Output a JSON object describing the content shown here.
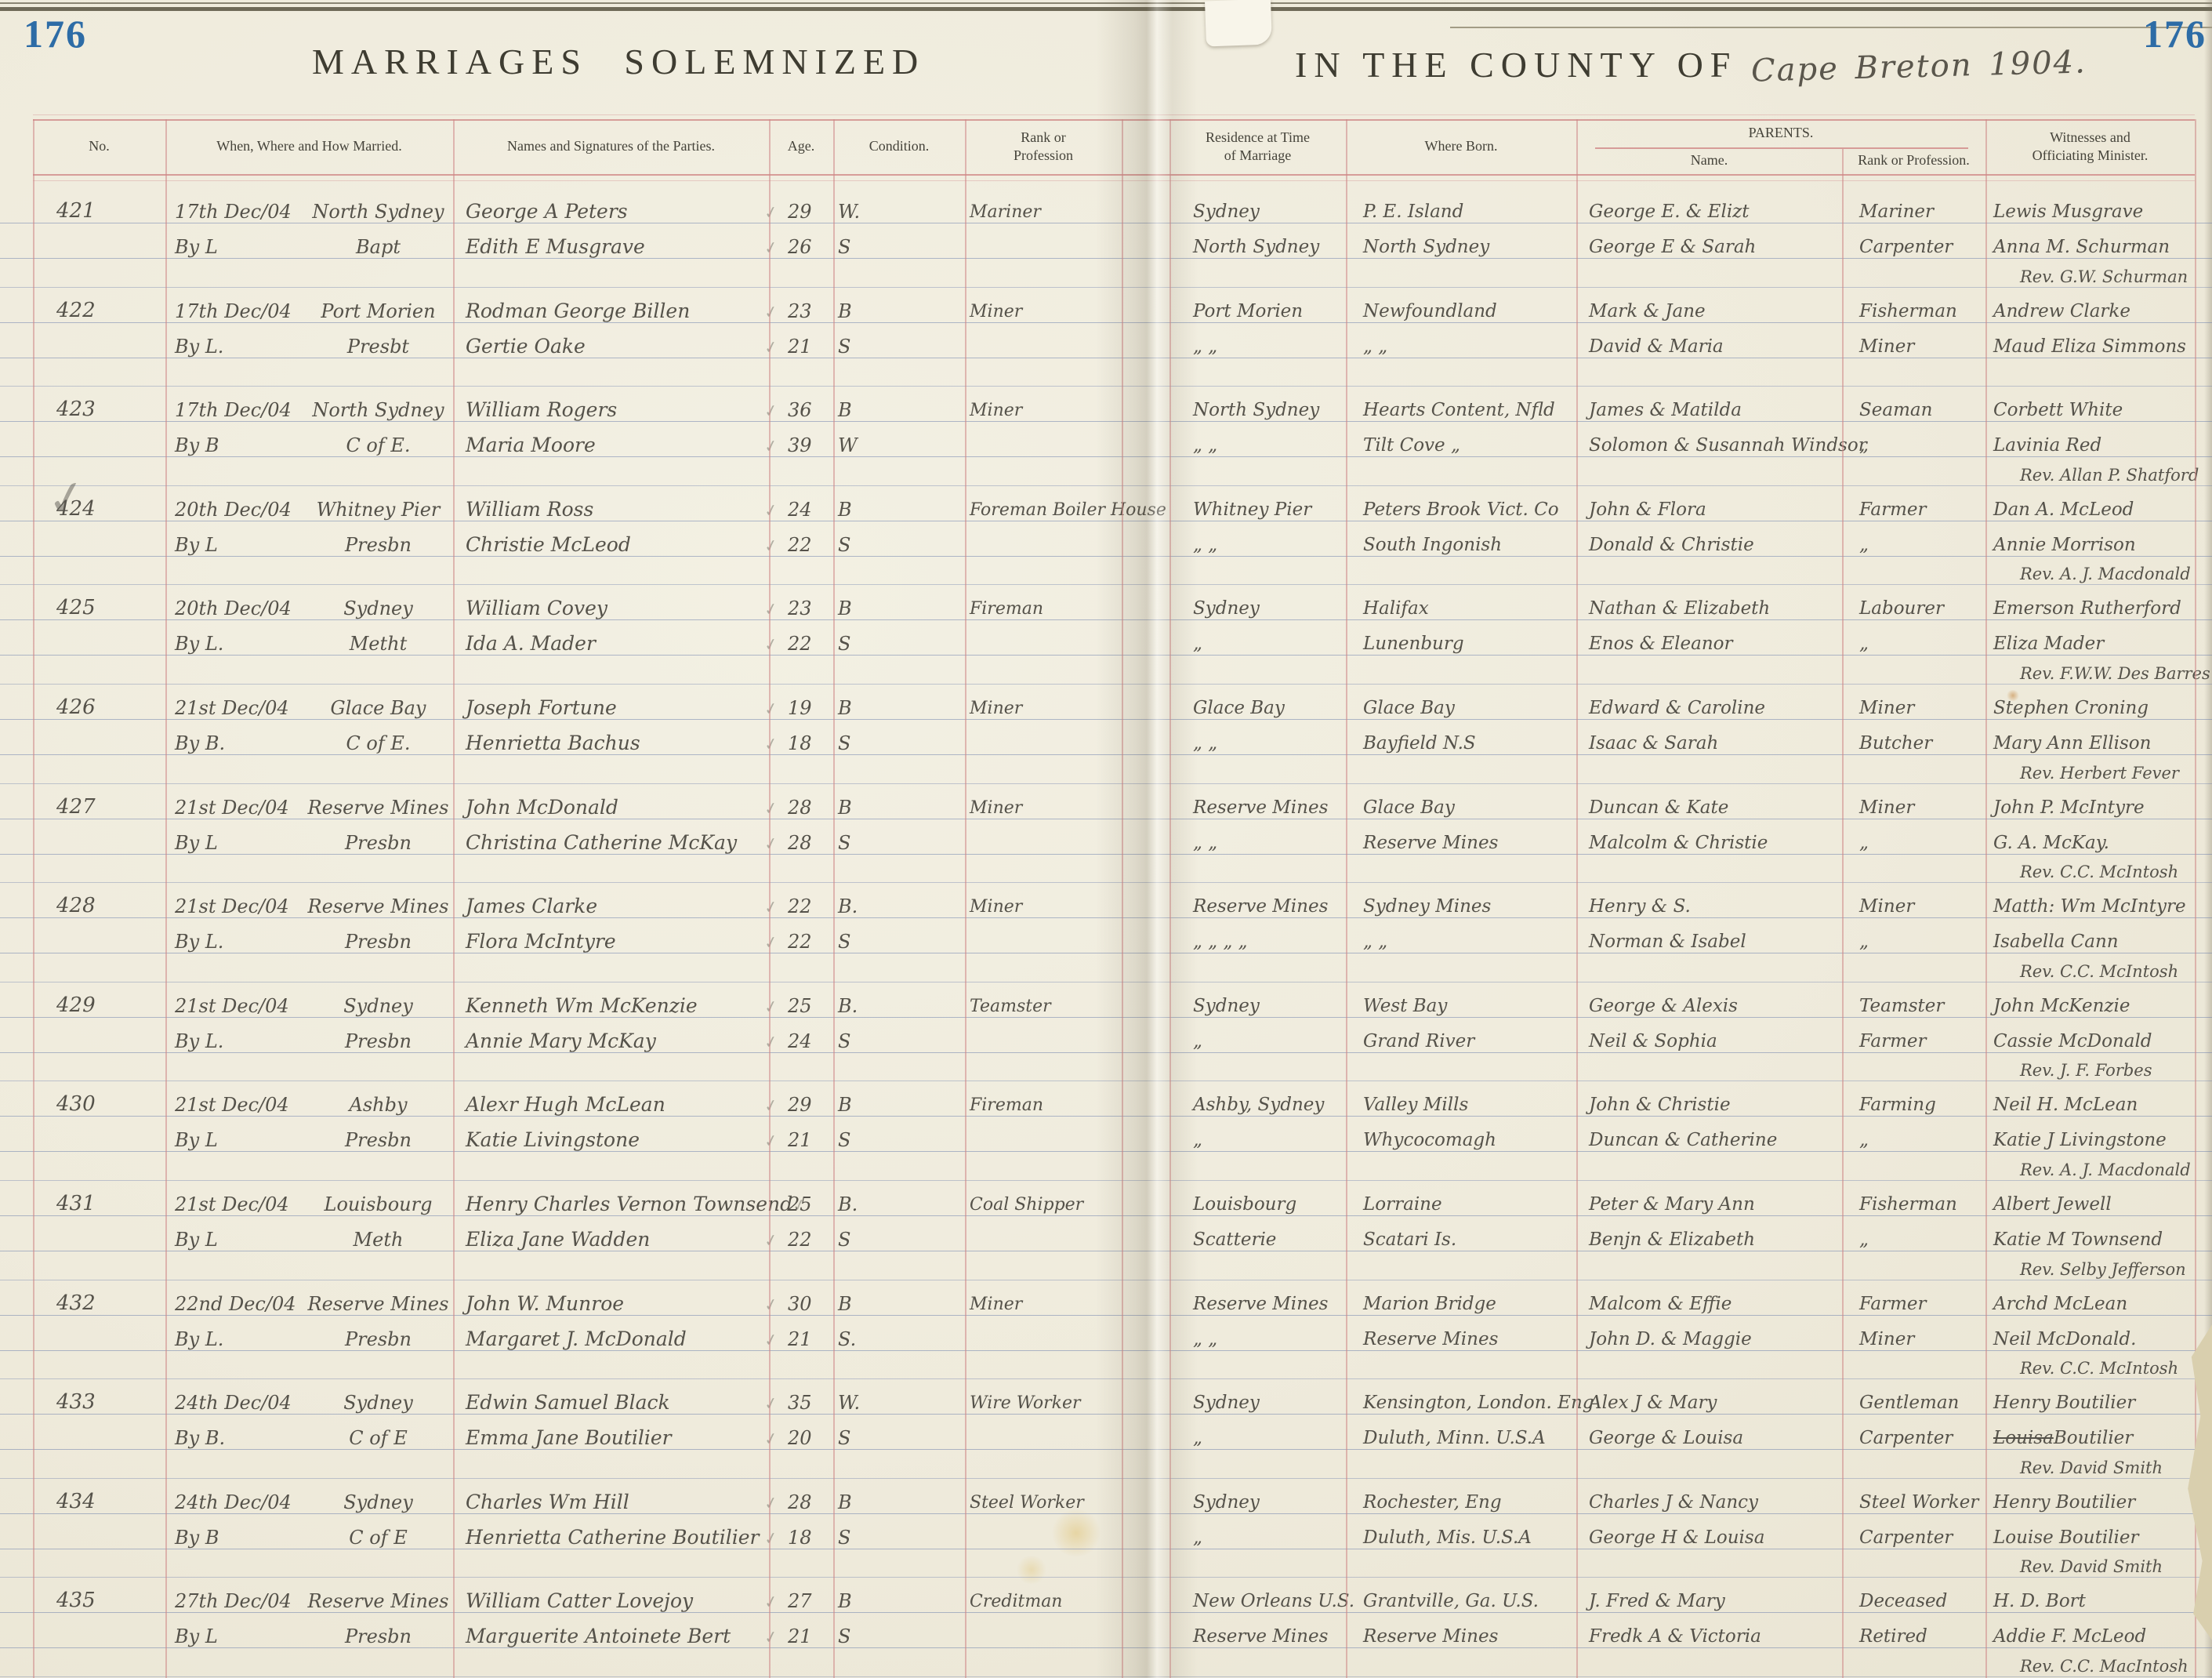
{
  "page": {
    "left_page_number": "176",
    "right_page_number": "176",
    "left_title": "MARRIAGES SOLEMNIZED",
    "right_title": "IN THE COUNTY OF",
    "county_handwritten": "Cape Breton 1904."
  },
  "colors": {
    "ruling_red": "#cd8282",
    "ruling_blue": "#687caa",
    "ink_pencil": "#55524a",
    "page_number_blue": "#2d6ca6",
    "paper": "#efebdc"
  },
  "icons": {
    "checkmark": "✓"
  },
  "columns": {
    "no": "No.",
    "when": "When, Where and How Married.",
    "names": "Names and Signatures of the Parties.",
    "age": "Age.",
    "condition": "Condition.",
    "rank": "Rank or\nProfession",
    "residence": "Residence at Time\nof Marriage",
    "born": "Where Born.",
    "parents": "PARENTS.",
    "parents_name": "Name.",
    "parents_rank": "Rank or Profession.",
    "witnesses": "Witnesses and\nOfficiating Minister."
  },
  "entries": [
    {
      "no": "421",
      "date": "17th Dec/04",
      "place": "North Sydney",
      "method": "By L",
      "denomination": "Bapt",
      "groom": {
        "name": "George A Peters",
        "age": "29",
        "condition": "W.",
        "profession": "Mariner",
        "residence": "Sydney",
        "born": "P. E. Island",
        "parents": "George E. & Elizt",
        "parents_profession": "Mariner",
        "witness": "Lewis Musgrave"
      },
      "bride": {
        "name": "Edith E Musgrave",
        "age": "26",
        "condition": "S",
        "residence": "North Sydney",
        "born": "North Sydney",
        "parents": "George E & Sarah",
        "parents_profession": "Carpenter",
        "witness": "Anna M. Schurman"
      },
      "minister": "Rev. G.W. Schurman"
    },
    {
      "no": "422",
      "date": "17th Dec/04",
      "place": "Port Morien",
      "method": "By L.",
      "denomination": "Presbt",
      "groom": {
        "name": "Rodman George Billen",
        "age": "23",
        "condition": "B",
        "profession": "Miner",
        "residence": "Port Morien",
        "born": "Newfoundland",
        "parents": "Mark & Jane",
        "parents_profession": "Fisherman",
        "witness": "Andrew Clarke"
      },
      "bride": {
        "name": "Gertie Oake",
        "age": "21",
        "condition": "S",
        "residence": "„    „",
        "born": "„    „",
        "parents": "David & Maria",
        "parents_profession": "Miner",
        "witness": "Maud Eliza Simmons"
      },
      "minister": ""
    },
    {
      "no": "423",
      "date": "17th Dec/04",
      "place": "North Sydney",
      "method": "By B",
      "denomination": "C of E.",
      "groom": {
        "name": "William Rogers",
        "age": "36",
        "condition": "B",
        "profession": "Miner",
        "residence": "North Sydney",
        "born": "Hearts Content, Nfld",
        "parents": "James & Matilda",
        "parents_profession": "Seaman",
        "witness": "Corbett White"
      },
      "bride": {
        "name": "Maria Moore",
        "age": "39",
        "condition": "W",
        "residence": "„    „",
        "born": "Tilt Cove   „",
        "parents": "Solomon & Susannah Windsor",
        "parents_profession": "„",
        "witness": "Lavinia Red"
      },
      "minister": "Rev. Allan P. Shatford"
    },
    {
      "no": "424",
      "no_checked": true,
      "date": "20th Dec/04",
      "place": "Whitney Pier",
      "method": "By L",
      "denomination": "Presbn",
      "groom": {
        "name": "William Ross",
        "age": "24",
        "condition": "B",
        "profession": "Foreman Boiler House",
        "residence": "Whitney Pier",
        "born": "Peters Brook Vict. Co",
        "parents": "John & Flora",
        "parents_profession": "Farmer",
        "witness": "Dan A. McLeod"
      },
      "bride": {
        "name": "Christie McLeod",
        "age": "22",
        "condition": "S",
        "residence": "„    „",
        "born": "South Ingonish",
        "parents": "Donald & Christie",
        "parents_profession": "„",
        "witness": "Annie Morrison"
      },
      "minister": "Rev. A. J. Macdonald"
    },
    {
      "no": "425",
      "date": "20th Dec/04",
      "place": "Sydney",
      "method": "By L.",
      "denomination": "Metht",
      "groom": {
        "name": "William Covey",
        "age": "23",
        "condition": "B",
        "profession": "Fireman",
        "residence": "Sydney",
        "born": "Halifax",
        "parents": "Nathan & Elizabeth",
        "parents_profession": "Labourer",
        "witness": "Emerson Rutherford"
      },
      "bride": {
        "name": "Ida A. Mader",
        "age": "22",
        "condition": "S",
        "residence": "„",
        "born": "Lunenburg",
        "parents": "Enos & Eleanor",
        "parents_profession": "„",
        "witness": "Eliza Mader"
      },
      "minister": "Rev. F.W.W. Des Barres"
    },
    {
      "no": "426",
      "date": "21st Dec/04",
      "place": "Glace Bay",
      "method": "By B.",
      "denomination": "C of E.",
      "groom": {
        "name": "Joseph Fortune",
        "age": "19",
        "condition": "B",
        "profession": "Miner",
        "residence": "Glace Bay",
        "born": "Glace Bay",
        "parents": "Edward & Caroline",
        "parents_profession": "Miner",
        "witness": "Stephen Croning"
      },
      "bride": {
        "name": "Henrietta Bachus",
        "age": "18",
        "condition": "S",
        "residence": "„    „",
        "born": "Bayfield  N.S",
        "parents": "Isaac & Sarah",
        "parents_profession": "Butcher",
        "witness": "Mary Ann Ellison"
      },
      "minister": "Rev. Herbert Fever"
    },
    {
      "no": "427",
      "date": "21st Dec/04",
      "place": "Reserve Mines",
      "method": "By L",
      "denomination": "Presbn",
      "groom": {
        "name": "John McDonald",
        "age": "28",
        "condition": "B",
        "profession": "Miner",
        "residence": "Reserve Mines",
        "born": "Glace Bay",
        "parents": "Duncan & Kate",
        "parents_profession": "Miner",
        "witness": "John P. McIntyre"
      },
      "bride": {
        "name": "Christina Catherine McKay",
        "age": "28",
        "condition": "S",
        "residence": "„    „",
        "born": "Reserve Mines",
        "parents": "Malcolm & Christie",
        "parents_profession": "„",
        "witness": "G. A. McKay."
      },
      "minister": "Rev. C.C. McIntosh"
    },
    {
      "no": "428",
      "date": "21st Dec/04",
      "place": "Reserve Mines",
      "method": "By L.",
      "denomination": "Presbn",
      "groom": {
        "name": "James Clarke",
        "age": "22",
        "condition": "B.",
        "profession": "Miner",
        "residence": "Reserve Mines",
        "born": "Sydney Mines",
        "parents": "Henry & S.",
        "parents_profession": "Miner",
        "witness": "Matth: Wm McIntyre"
      },
      "bride": {
        "name": "Flora McIntyre",
        "age": "22",
        "condition": "S",
        "residence": "„   „   „   „",
        "born": "„    „",
        "parents": "Norman & Isabel",
        "parents_profession": "„",
        "witness": "Isabella Cann"
      },
      "minister": "Rev. C.C. McIntosh"
    },
    {
      "no": "429",
      "date": "21st Dec/04",
      "place": "Sydney",
      "method": "By L.",
      "denomination": "Presbn",
      "groom": {
        "name": "Kenneth Wm McKenzie",
        "age": "25",
        "condition": "B.",
        "profession": "Teamster",
        "residence": "Sydney",
        "born": "West Bay",
        "parents": "George & Alexis",
        "parents_profession": "Teamster",
        "witness": "John McKenzie"
      },
      "bride": {
        "name": "Annie Mary McKay",
        "age": "24",
        "condition": "S",
        "residence": "„",
        "born": "Grand River",
        "parents": "Neil & Sophia",
        "parents_profession": "Farmer",
        "witness": "Cassie McDonald"
      },
      "minister": "Rev. J. F. Forbes"
    },
    {
      "no": "430",
      "date": "21st Dec/04",
      "place": "Ashby",
      "method": "By L",
      "denomination": "Presbn",
      "groom": {
        "name": "Alexr Hugh McLean",
        "age": "29",
        "condition": "B",
        "profession": "Fireman",
        "residence": "Ashby, Sydney",
        "born": "Valley Mills",
        "parents": "John & Christie",
        "parents_profession": "Farming",
        "witness": "Neil H. McLean"
      },
      "bride": {
        "name": "Katie Livingstone",
        "age": "21",
        "condition": "S",
        "residence": "„",
        "born": "Whycocomagh",
        "parents": "Duncan & Catherine",
        "parents_profession": "„",
        "witness": "Katie J Livingstone"
      },
      "minister": "Rev. A. J. Macdonald"
    },
    {
      "no": "431",
      "date": "21st Dec/04",
      "place": "Louisbourg",
      "method": "By L",
      "denomination": "Meth",
      "groom": {
        "name": "Henry Charles Vernon Townsend",
        "age": "25",
        "condition": "B.",
        "profession": "Coal Shipper",
        "residence": "Louisbourg",
        "born": "Lorraine",
        "parents": "Peter & Mary Ann",
        "parents_profession": "Fisherman",
        "witness": "Albert Jewell"
      },
      "bride": {
        "name": "Eliza Jane Wadden",
        "age": "22",
        "condition": "S",
        "residence": "Scatterie",
        "born": "Scatari Is.",
        "parents": "Benjn & Elizabeth",
        "parents_profession": "„",
        "witness": "Katie M Townsend"
      },
      "minister": "Rev. Selby Jefferson"
    },
    {
      "no": "432",
      "date": "22nd Dec/04",
      "place": "Reserve Mines",
      "method": "By L.",
      "denomination": "Presbn",
      "groom": {
        "name": "John W. Munroe",
        "age": "30",
        "condition": "B",
        "profession": "Miner",
        "residence": "Reserve Mines",
        "born": "Marion Bridge",
        "parents": "Malcom & Effie",
        "parents_profession": "Farmer",
        "witness": "Archd McLean"
      },
      "bride": {
        "name": "Margaret J. McDonald",
        "age": "21",
        "condition": "S.",
        "residence": "„    „",
        "born": "Reserve Mines",
        "parents": "John D. & Maggie",
        "parents_profession": "Miner",
        "witness": "Neil McDonald."
      },
      "minister": "Rev. C.C. McIntosh"
    },
    {
      "no": "433",
      "date": "24th Dec/04",
      "place": "Sydney",
      "method": "By B.",
      "denomination": "C of E",
      "groom": {
        "name": "Edwin Samuel Black",
        "age": "35",
        "condition": "W.",
        "profession": "Wire Worker",
        "residence": "Sydney",
        "born": "Kensington, London. Eng",
        "parents": "Alex J & Mary",
        "parents_profession": "Gentleman",
        "witness": "Henry Boutilier"
      },
      "bride": {
        "name": "Emma Jane Boutilier",
        "age": "20",
        "condition": "S",
        "residence": "„",
        "born": "Duluth, Minn. U.S.A",
        "parents": "George & Louisa",
        "parents_profession": "Carpenter",
        "witness": "Louisa Boutilier",
        "strike_first_word": true
      },
      "minister": "Rev. David Smith"
    },
    {
      "no": "434",
      "date": "24th Dec/04",
      "place": "Sydney",
      "method": "By B",
      "denomination": "C of E",
      "groom": {
        "name": "Charles Wm Hill",
        "age": "28",
        "condition": "B",
        "profession": "Steel Worker",
        "residence": "Sydney",
        "born": "Rochester, Eng",
        "parents": "Charles J & Nancy",
        "parents_profession": "Steel Worker",
        "witness": "Henry Boutilier"
      },
      "bride": {
        "name": "Henrietta Catherine Boutilier",
        "age": "18",
        "condition": "S",
        "residence": "„",
        "born": "Duluth, Mis. U.S.A",
        "parents": "George H & Louisa",
        "parents_profession": "Carpenter",
        "witness": "Louise Boutilier"
      },
      "minister": "Rev. David Smith"
    },
    {
      "no": "435",
      "date": "27th Dec/04",
      "place": "Reserve Mines",
      "method": "By L",
      "denomination": "Presbn",
      "groom": {
        "name": "William Catter Lovejoy",
        "age": "27",
        "condition": "B",
        "profession": "Creditman",
        "residence": "New Orleans U.S.",
        "born": "Grantville, Ga. U.S.",
        "parents": "J. Fred & Mary",
        "parents_profession": "Deceased",
        "witness": "H. D. Bort"
      },
      "bride": {
        "name": "Marguerite Antoinete Bert",
        "age": "21",
        "condition": "S",
        "residence": "Reserve Mines",
        "born": "Reserve Mines",
        "parents": "Fredk A & Victoria",
        "parents_profession": "Retired",
        "witness": "Addie F. McLeod"
      },
      "minister": "Rev. C.C. MacIntosh"
    }
  ]
}
